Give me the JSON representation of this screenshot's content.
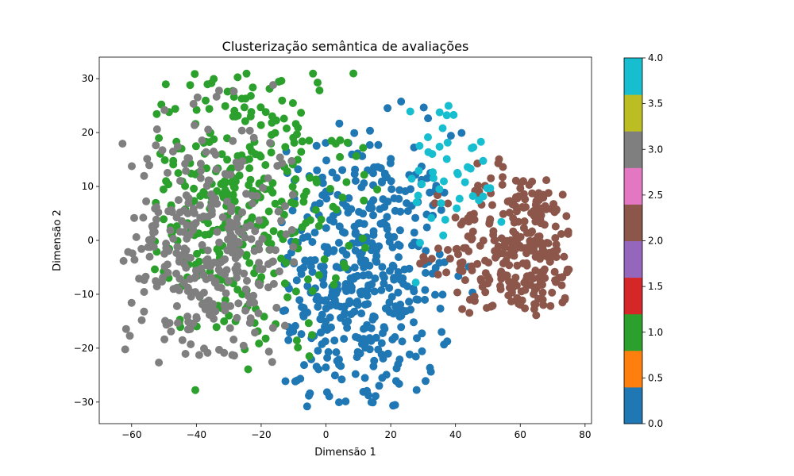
{
  "chart_data": {
    "type": "scatter",
    "title": "Clusterização semântica de avaliações",
    "xlabel": "Dimensão 1",
    "ylabel": "Dimensão 2",
    "xlim": [
      -70,
      82
    ],
    "ylim": [
      -34,
      34
    ],
    "xticks": [
      -60,
      -40,
      -20,
      0,
      20,
      40,
      60,
      80
    ],
    "xtick_labels": [
      "−60",
      "−40",
      "−20",
      "0",
      "20",
      "40",
      "60",
      "80"
    ],
    "yticks": [
      -30,
      -20,
      -10,
      0,
      10,
      20,
      30
    ],
    "ytick_labels": [
      "−30",
      "−20",
      "−10",
      "0",
      "10",
      "20",
      "30"
    ],
    "grid": false,
    "colorbar": {
      "min": 0.0,
      "max": 4.0,
      "tick_labels": [
        "0.0",
        "0.5",
        "1.0",
        "1.5",
        "2.0",
        "2.5",
        "3.0",
        "3.5",
        "4.0"
      ],
      "colors": [
        "#1f77b4",
        "#ff7f0e",
        "#2ca02c",
        "#d62728",
        "#9467bd",
        "#8c564b",
        "#e377c2",
        "#7f7f7f",
        "#bcbd22",
        "#17becf"
      ]
    },
    "clusters": [
      {
        "label": 0,
        "color": "#1f77b4",
        "count": 460,
        "center": [
          10,
          -7
        ],
        "extent": {
          "x": [
            -14,
            48
          ],
          "y": [
            -31,
            26
          ]
        }
      },
      {
        "label": 1,
        "color": "#2ca02c",
        "count": 340,
        "center": [
          -28,
          8
        ],
        "extent": {
          "x": [
            -53,
            22
          ],
          "y": [
            -30,
            31
          ]
        }
      },
      {
        "label": 2,
        "color": "#8c564b",
        "count": 290,
        "center": [
          60,
          -2
        ],
        "extent": {
          "x": [
            28,
            75
          ],
          "y": [
            -14,
            19
          ]
        }
      },
      {
        "label": 3,
        "color": "#7f7f7f",
        "count": 330,
        "center": [
          -36,
          -2
        ],
        "extent": {
          "x": [
            -63,
            -8
          ],
          "y": [
            -23,
            29
          ]
        }
      },
      {
        "label": 4,
        "color": "#17becf",
        "count": 45,
        "center": [
          38,
          13
        ],
        "extent": {
          "x": [
            25,
            62
          ],
          "y": [
            -8,
            25
          ]
        }
      }
    ]
  }
}
